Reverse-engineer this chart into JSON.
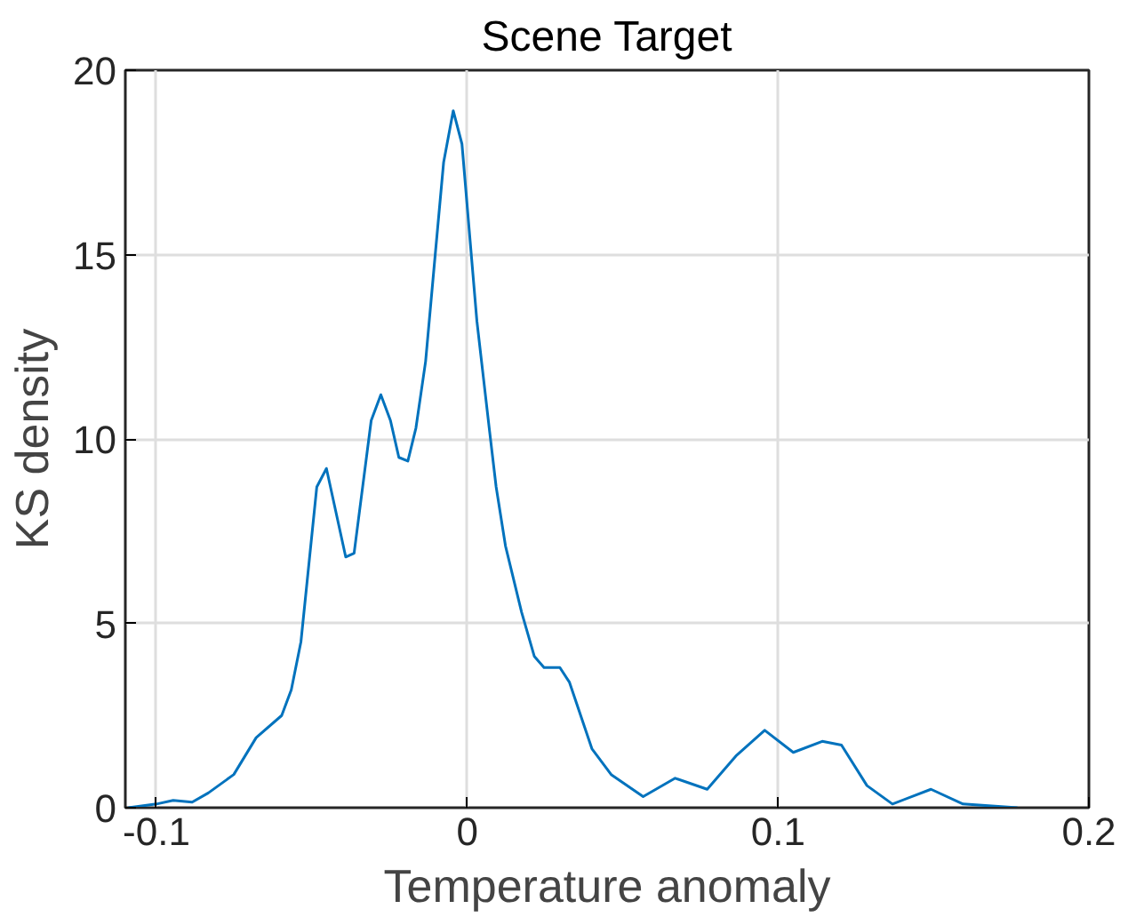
{
  "chart_data": {
    "type": "line",
    "title": "Scene Target",
    "xlabel": "Temperature anomaly",
    "ylabel": "KS density",
    "x": [
      -0.109,
      -0.1,
      -0.0946,
      -0.0885,
      -0.0833,
      -0.0751,
      -0.0679,
      -0.0597,
      -0.0566,
      -0.0535,
      -0.0484,
      -0.0453,
      -0.0391,
      -0.0364,
      -0.0309,
      -0.0278,
      -0.0247,
      -0.022,
      -0.0191,
      -0.0165,
      -0.0134,
      -0.0103,
      -0.0076,
      -0.0045,
      -0.0017,
      0.0031,
      0.0072,
      0.0093,
      0.0123,
      0.0175,
      0.0216,
      0.0247,
      0.0298,
      0.0329,
      0.0401,
      0.0463,
      0.0566,
      0.0669,
      0.0772,
      0.0864,
      0.0957,
      0.1049,
      0.1142,
      0.1204,
      0.1286,
      0.1368,
      0.1492,
      0.1595,
      0.177
    ],
    "series": [
      {
        "color": "#0072bd",
        "values": [
          0.0,
          0.1,
          0.2,
          0.15,
          0.4,
          0.9,
          1.9,
          2.5,
          3.2,
          4.5,
          8.7,
          9.2,
          6.8,
          6.9,
          10.5,
          11.2,
          10.5,
          9.5,
          9.4,
          10.3,
          12.1,
          15.0,
          17.5,
          18.9,
          18.0,
          13.2,
          10.2,
          8.7,
          7.1,
          5.3,
          4.1,
          3.8,
          3.8,
          3.4,
          1.6,
          0.9,
          0.3,
          0.8,
          0.5,
          1.4,
          2.1,
          1.5,
          1.8,
          1.7,
          0.6,
          0.1,
          0.5,
          0.1,
          0.0
        ]
      }
    ],
    "xlim": [
      -0.11,
      0.2
    ],
    "ylim": [
      0,
      20
    ],
    "xticks": [
      -0.1,
      0,
      0.1,
      0.2
    ],
    "yticks": [
      0,
      5,
      10,
      15,
      20
    ],
    "grid": true,
    "line_style": "solid",
    "marker": "none"
  }
}
